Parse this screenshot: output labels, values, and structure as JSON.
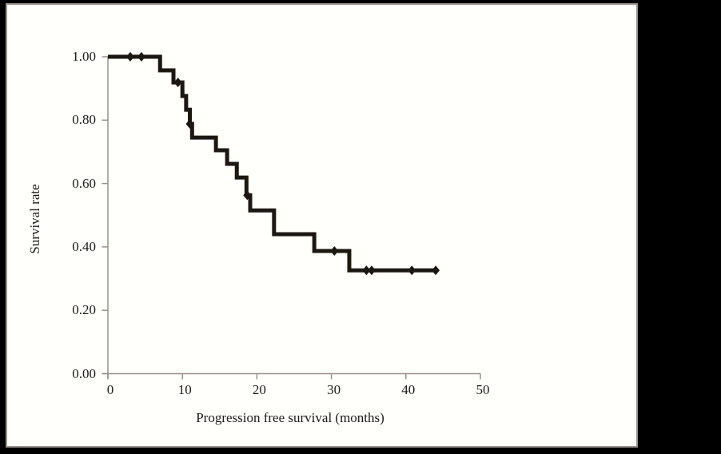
{
  "frame": {
    "background_color": "#000000",
    "panel_color": "#fffffc",
    "panel_border_color": "#9b918d"
  },
  "axis_style": {
    "line_color": "#9a8f89",
    "text_color": "#1e1a18"
  },
  "chart_data": {
    "type": "line",
    "subtype": "kaplan-meier-step-curve",
    "title": "",
    "xlabel": "Progression free survival (months)",
    "ylabel": "Survival rate",
    "xlim": [
      0,
      50
    ],
    "ylim": [
      0.0,
      1.0
    ],
    "x_ticks": [
      "0",
      "10",
      "20",
      "30",
      "40",
      "50"
    ],
    "x_tick_values": [
      0,
      10,
      20,
      30,
      40,
      50
    ],
    "y_ticks": [
      "0.00",
      "0.20",
      "0.40",
      "0.60",
      "0.80",
      "1.00"
    ],
    "y_tick_values": [
      0.0,
      0.2,
      0.4,
      0.6,
      0.8,
      1.0
    ],
    "grid": false,
    "legend": null,
    "series": [
      {
        "name": "Progression free survival",
        "color": "#1d1712",
        "line_width": 5,
        "steps": [
          [
            0.0,
            1.0
          ],
          [
            7.0,
            0.957
          ],
          [
            8.8,
            0.919
          ],
          [
            10.0,
            0.876
          ],
          [
            10.5,
            0.833
          ],
          [
            11.0,
            0.788
          ],
          [
            11.3,
            0.745
          ],
          [
            14.5,
            0.705
          ],
          [
            16.0,
            0.662
          ],
          [
            17.3,
            0.619
          ],
          [
            18.6,
            0.563
          ],
          [
            19.1,
            0.515
          ],
          [
            22.3,
            0.44
          ],
          [
            27.7,
            0.387
          ],
          [
            32.4,
            0.326
          ]
        ],
        "end_time": 44.0,
        "censor_marks": [
          [
            3.0,
            1.0
          ],
          [
            4.5,
            1.0
          ],
          [
            9.4,
            0.919
          ],
          [
            11.0,
            0.788
          ],
          [
            18.7,
            0.563
          ],
          [
            30.4,
            0.387
          ],
          [
            34.7,
            0.326
          ],
          [
            35.4,
            0.326
          ],
          [
            40.8,
            0.326
          ],
          [
            44.0,
            0.326
          ]
        ]
      }
    ]
  }
}
